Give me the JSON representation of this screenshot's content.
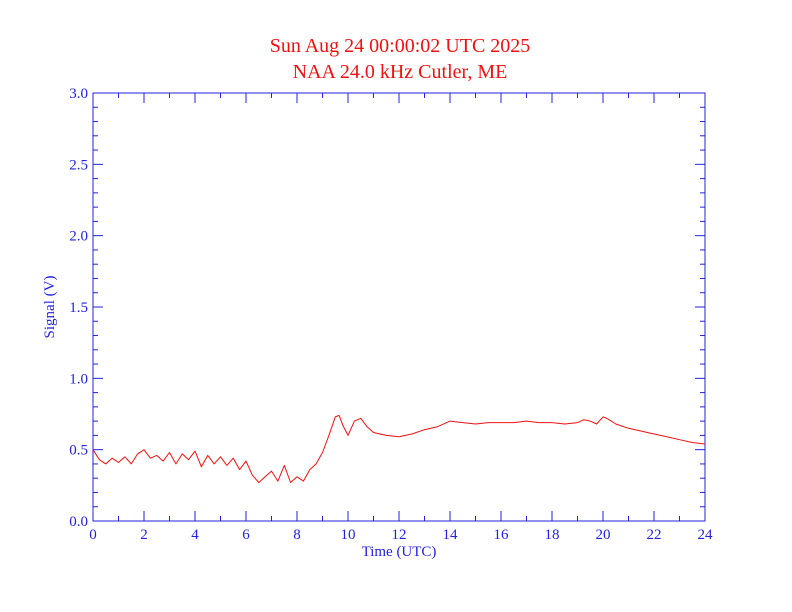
{
  "chart_data": {
    "type": "line",
    "title": "Sun Aug 24 00:00:02 UTC 2025",
    "subtitle": "NAA 24.0 kHz Cutler, ME",
    "xlabel": "Time (UTC)",
    "ylabel": "Signal (V)",
    "xlim": [
      0,
      24
    ],
    "ylim": [
      0,
      3.0
    ],
    "xticks": [
      "0",
      "2",
      "4",
      "6",
      "8",
      "10",
      "12",
      "14",
      "16",
      "18",
      "20",
      "22",
      "24"
    ],
    "yticks": [
      "0.0",
      "0.5",
      "1.0",
      "1.5",
      "2.0",
      "2.5",
      "3.0"
    ],
    "grid": false,
    "colors": {
      "axis": "#2222dd",
      "line": "#ee1111",
      "title": "#ee1111"
    },
    "series": [
      {
        "x": [
          0,
          0.25,
          0.5,
          0.75,
          1,
          1.25,
          1.5,
          1.75,
          2,
          2.25,
          2.5,
          2.75,
          3,
          3.25,
          3.5,
          3.75,
          4,
          4.25,
          4.5,
          4.75,
          5,
          5.25,
          5.5,
          5.75,
          6,
          6.25,
          6.5,
          6.75,
          7,
          7.25,
          7.5,
          7.75,
          8,
          8.25,
          8.5,
          8.75,
          9,
          9.25,
          9.5,
          9.65,
          9.8,
          10,
          10.25,
          10.5,
          10.75,
          11,
          11.5,
          12,
          12.5,
          13,
          13.5,
          14,
          14.5,
          15,
          15.5,
          16,
          16.5,
          17,
          17.5,
          18,
          18.5,
          19,
          19.25,
          19.5,
          19.75,
          20,
          20.15,
          20.5,
          21,
          21.5,
          22,
          22.5,
          23,
          23.5,
          24
        ],
        "values": [
          0.5,
          0.43,
          0.4,
          0.44,
          0.41,
          0.45,
          0.4,
          0.47,
          0.5,
          0.44,
          0.46,
          0.42,
          0.48,
          0.4,
          0.47,
          0.43,
          0.49,
          0.38,
          0.46,
          0.4,
          0.45,
          0.39,
          0.44,
          0.36,
          0.42,
          0.32,
          0.27,
          0.31,
          0.35,
          0.28,
          0.39,
          0.27,
          0.31,
          0.28,
          0.36,
          0.4,
          0.48,
          0.6,
          0.73,
          0.74,
          0.67,
          0.6,
          0.7,
          0.72,
          0.66,
          0.62,
          0.6,
          0.59,
          0.61,
          0.64,
          0.66,
          0.7,
          0.69,
          0.68,
          0.69,
          0.69,
          0.69,
          0.7,
          0.69,
          0.69,
          0.68,
          0.69,
          0.71,
          0.7,
          0.68,
          0.73,
          0.72,
          0.68,
          0.65,
          0.63,
          0.61,
          0.59,
          0.57,
          0.55,
          0.54
        ]
      }
    ]
  }
}
